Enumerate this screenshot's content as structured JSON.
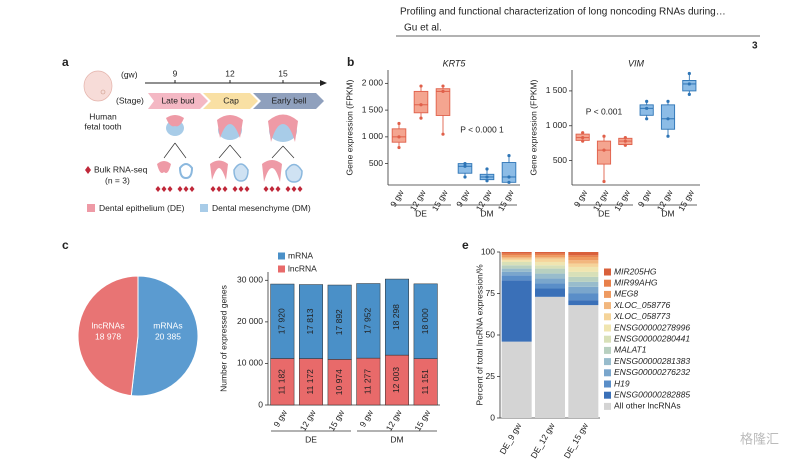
{
  "header": {
    "title": "Profiling and functional characterization of long noncoding RNAs during…",
    "authors": "Gu et al.",
    "page": "3"
  },
  "panel_a": {
    "label": "a",
    "time_unit": "(gw)",
    "timepoints": [
      "9",
      "12",
      "15"
    ],
    "stage_label": "(Stage)",
    "stages": [
      "Late bud",
      "Cap",
      "Early bell"
    ],
    "tissue": [
      "Human",
      "fetal tooth"
    ],
    "sequencing": "Bulk RNA-seq",
    "replicates": "(n = 3)",
    "legend": [
      "Dental epithelium (DE)",
      "Dental mesenchyme (DM)"
    ]
  },
  "panel_labels": [
    "b",
    "c",
    "e"
  ],
  "watermark": "格隆汇",
  "chart_data": [
    {
      "type": "box",
      "title": "KRT5",
      "y_label": "Gene expression (FPKM)",
      "categories": [
        "9 gw",
        "12 gw",
        "15 gw",
        "9 gw",
        "12 gw",
        "15 gw"
      ],
      "group_labels": [
        "DE",
        "DM"
      ],
      "colors": [
        "#f4a590",
        "#8cbce6"
      ],
      "edge_colors": [
        "#e0604a",
        "#2e75b6"
      ],
      "boxes": [
        {
          "min": 800,
          "q1": 900,
          "median": 1000,
          "q3": 1150,
          "max": 1250
        },
        {
          "min": 1350,
          "q1": 1450,
          "median": 1600,
          "q3": 1850,
          "max": 1950
        },
        {
          "min": 1050,
          "q1": 1400,
          "median": 1850,
          "q3": 1900,
          "max": 1950
        },
        {
          "min": 250,
          "q1": 320,
          "median": 450,
          "q3": 500,
          "max": 500
        },
        {
          "min": 180,
          "q1": 200,
          "median": 250,
          "q3": 300,
          "max": 400
        },
        {
          "min": 150,
          "q1": 150,
          "median": 250,
          "q3": 520,
          "max": 650
        }
      ],
      "ylim": [
        100,
        2250
      ],
      "yticks": [
        500,
        {
          "value": 1000,
          "label": "1 000"
        },
        {
          "value": 1500,
          "label": "1 500"
        },
        {
          "value": 2000,
          "label": "2 000"
        }
      ],
      "annotation": "P < 0.000 1"
    },
    {
      "type": "box",
      "title": "VIM",
      "y_label": "Gene expression (FPKM)",
      "categories": [
        "9 gw",
        "12 gw",
        "15 gw",
        "9 gw",
        "12 gw",
        "15 gw"
      ],
      "group_labels": [
        "DE",
        "DM"
      ],
      "colors": [
        "#f4a590",
        "#8cbce6"
      ],
      "edge_colors": [
        "#e0604a",
        "#2e75b6"
      ],
      "boxes": [
        {
          "min": 780,
          "q1": 790,
          "median": 830,
          "q3": 880,
          "max": 900
        },
        {
          "min": 200,
          "q1": 450,
          "median": 650,
          "q3": 780,
          "max": 850
        },
        {
          "min": 720,
          "q1": 730,
          "median": 780,
          "q3": 820,
          "max": 830
        },
        {
          "min": 1100,
          "q1": 1150,
          "median": 1250,
          "q3": 1300,
          "max": 1350
        },
        {
          "min": 850,
          "q1": 950,
          "median": 1100,
          "q3": 1300,
          "max": 1350
        },
        {
          "min": 1450,
          "q1": 1500,
          "median": 1600,
          "q3": 1650,
          "max": 1750
        }
      ],
      "ylim": [
        150,
        1800
      ],
      "yticks": [
        500,
        {
          "value": 1000,
          "label": "1 000"
        },
        {
          "value": 1500,
          "label": "1 500"
        }
      ],
      "annotation": "P < 0.001"
    },
    {
      "type": "pie",
      "labels": [
        "lncRNAs",
        "mRNAs"
      ],
      "values": [
        18978,
        20385
      ],
      "value_labels": [
        "18 978",
        "20 385"
      ],
      "colors": [
        "#e87474",
        "#5b9bd0"
      ]
    },
    {
      "type": "stacked_bar",
      "y_label": "Number of expressed genes",
      "categories": [
        "9 gw",
        "12 gw",
        "15 gw",
        "9 gw",
        "12 gw",
        "15 gw"
      ],
      "group_labels": [
        "DE",
        "DM"
      ],
      "series": [
        {
          "name": "mRNA",
          "color": "#4a90c8",
          "values": [
            17920,
            17813,
            17892,
            17952,
            18298,
            18000
          ],
          "value_labels": [
            "17 920",
            "17 813",
            "17 892",
            "17 952",
            "18 298",
            "18 000"
          ]
        },
        {
          "name": "lncRNA",
          "color": "#e86a6a",
          "values": [
            11182,
            11172,
            10974,
            11277,
            12003,
            11151
          ],
          "value_labels": [
            "11 182",
            "11 172",
            "10 974",
            "11 277",
            "12 003",
            "11 151"
          ]
        }
      ],
      "ylim": [
        0,
        32000
      ],
      "yticks": [
        0,
        {
          "value": 10000,
          "label": "10 000"
        },
        {
          "value": 20000,
          "label": "20 000"
        },
        {
          "value": 30000,
          "label": "30 000"
        }
      ]
    },
    {
      "type": "stacked_bar",
      "y_label": "Percent of total lncRNA expression/%",
      "categories": [
        "DE_9 gw",
        "DE_12 gw",
        "DE_15 gw"
      ],
      "series": [
        {
          "name": "MIR205HG",
          "color": "#d9603b",
          "values": [
            1,
            1,
            2
          ]
        },
        {
          "name": "MIR99AHG",
          "color": "#e8804a",
          "values": [
            1,
            1,
            1
          ]
        },
        {
          "name": "MEG8",
          "color": "#ee9a60",
          "values": [
            1,
            1,
            2
          ]
        },
        {
          "name": "XLOC_058776",
          "color": "#f2b77e",
          "values": [
            1,
            1,
            2
          ]
        },
        {
          "name": "XLOC_058773",
          "color": "#f5d49a",
          "values": [
            1,
            2,
            2
          ]
        },
        {
          "name": "ENSG00000278996",
          "color": "#f0e5b0",
          "values": [
            1,
            2,
            3
          ]
        },
        {
          "name": "ENSG00000280441",
          "color": "#d8e0b8",
          "values": [
            2,
            2,
            3
          ]
        },
        {
          "name": "MALAT1",
          "color": "#b8d0c0",
          "values": [
            2,
            3,
            3
          ]
        },
        {
          "name": "ENSG00000281383",
          "color": "#98bccc",
          "values": [
            2,
            3,
            3
          ]
        },
        {
          "name": "ENSG00000276232",
          "color": "#7aa6cc",
          "values": [
            2,
            3,
            4
          ]
        },
        {
          "name": "H19",
          "color": "#5a8ec8",
          "values": [
            3,
            3,
            4
          ]
        },
        {
          "name": "ENSG00000282885",
          "color": "#3a70b8",
          "values": [
            37,
            5,
            3
          ]
        },
        {
          "name": "All other lncRNAs",
          "color": "#d4d4d4",
          "values": [
            46,
            73,
            68
          ]
        }
      ],
      "ylim": [
        0,
        100
      ],
      "yticks": [
        0,
        25,
        50,
        75,
        100
      ]
    }
  ]
}
